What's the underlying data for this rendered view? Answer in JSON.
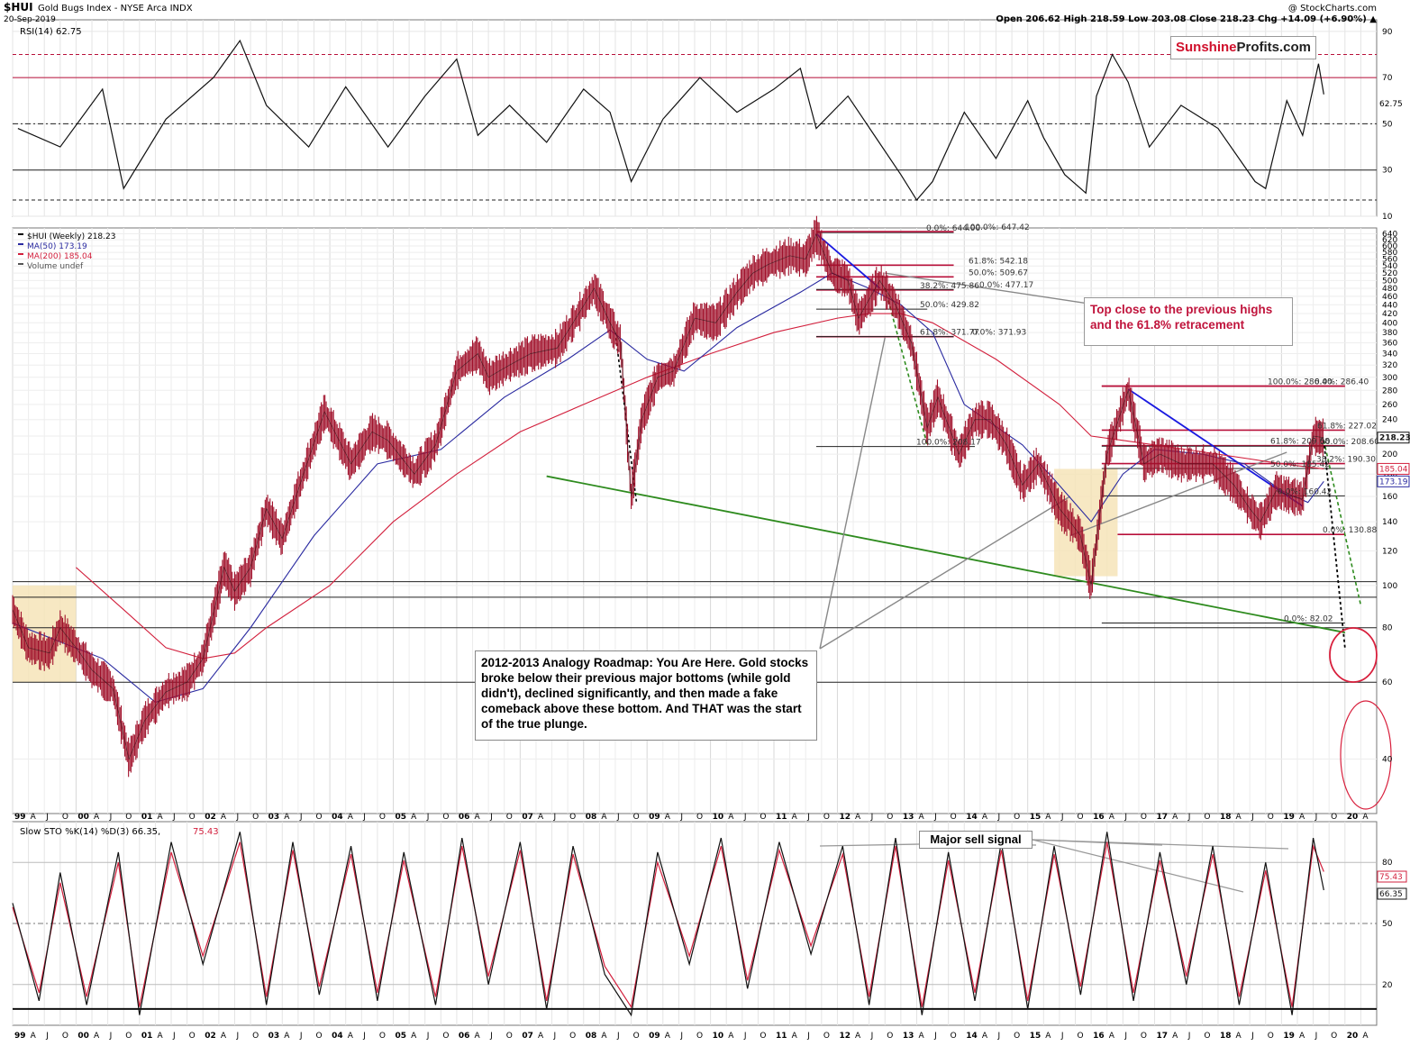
{
  "header": {
    "ticker": "$HUI",
    "name": "Gold Bugs Index - NYSE Arca INDX",
    "date": "20-Sep-2019",
    "credit": "@ StockCharts.com",
    "ohlc": "Open 206.62  High 218.59  Low 203.08  Close 218.23  Chg +14.09 (+6.90%) ▲"
  },
  "logo": {
    "part1": "Sunshine",
    "part2": "Profits.com"
  },
  "colors": {
    "price_bar": "#a0102a",
    "ma50": "#2a2aa0",
    "ma200": "#d21f3c",
    "resistance": "#b8103a",
    "trend_green": "#2e8b1e",
    "trend_blue": "#1a1ae0",
    "highlight_box": "#f5e2b4"
  },
  "chart_data": [
    {
      "type": "line",
      "title": "RSI(14) 62.75",
      "label": "RSI(14) 62.75",
      "ylim": [
        10,
        95
      ],
      "y_ticks": [
        90,
        70,
        50,
        30,
        10
      ],
      "last_value_label": "62.75",
      "reference_levels": [
        80,
        70,
        50,
        30,
        17
      ],
      "x": [
        "1999-02",
        "1999-10",
        "2000-06",
        "2000-10",
        "2001-06",
        "2002-03",
        "2002-08",
        "2003-01",
        "2003-09",
        "2004-04",
        "2004-12",
        "2005-07",
        "2006-01",
        "2006-05",
        "2006-11",
        "2007-06",
        "2008-01",
        "2008-06",
        "2008-10",
        "2009-04",
        "2009-11",
        "2010-06",
        "2011-01",
        "2011-06",
        "2011-09",
        "2012-03",
        "2012-08",
        "2013-01",
        "2013-04",
        "2013-07",
        "2014-01",
        "2014-07",
        "2015-01",
        "2015-04",
        "2015-08",
        "2015-12",
        "2016-02",
        "2016-05",
        "2016-08",
        "2016-12",
        "2017-06",
        "2018-01",
        "2018-08",
        "2018-10",
        "2019-02",
        "2019-05",
        "2019-08",
        "2019-09"
      ],
      "values": [
        48,
        40,
        65,
        22,
        52,
        70,
        86,
        58,
        40,
        66,
        40,
        62,
        78,
        45,
        58,
        42,
        65,
        55,
        25,
        52,
        70,
        55,
        65,
        74,
        48,
        62,
        45,
        28,
        17,
        25,
        55,
        35,
        60,
        44,
        28,
        20,
        62,
        80,
        68,
        40,
        58,
        48,
        25,
        22,
        60,
        45,
        76,
        62.75
      ]
    },
    {
      "type": "line",
      "title": "$HUI (Weekly) 218.23",
      "scale": "log",
      "ylim": [
        30,
        660
      ],
      "y_ticks": [
        640,
        620,
        600,
        580,
        560,
        540,
        520,
        500,
        480,
        460,
        440,
        420,
        400,
        380,
        360,
        340,
        320,
        300,
        280,
        260,
        240,
        220,
        200,
        180,
        160,
        140,
        120,
        100,
        80,
        60,
        40
      ],
      "x_labels": [
        "99",
        "A",
        "J",
        "O",
        "00",
        "A",
        "J",
        "O",
        "01",
        "A",
        "J",
        "O",
        "02",
        "A",
        "J",
        "O",
        "03",
        "A",
        "J",
        "O",
        "04",
        "A",
        "J",
        "O",
        "05",
        "A",
        "J",
        "O",
        "06",
        "A",
        "J",
        "O",
        "07",
        "A",
        "J",
        "O",
        "08",
        "A",
        "J",
        "O",
        "09",
        "A",
        "J",
        "O",
        "10",
        "A",
        "J",
        "O",
        "11",
        "A",
        "J",
        "O",
        "12",
        "A",
        "J",
        "O",
        "13",
        "A",
        "J",
        "O",
        "14",
        "A",
        "J",
        "O",
        "15",
        "A",
        "J",
        "O",
        "16",
        "A",
        "J",
        "O",
        "17",
        "A",
        "J",
        "O",
        "18",
        "A",
        "J",
        "O",
        "19",
        "A",
        "J",
        "O",
        "20",
        "A"
      ],
      "legend": [
        {
          "name": "$HUI (Weekly) 218.23"
        },
        {
          "name": "MA(50) 173.19"
        },
        {
          "name": "MA(200) 185.04"
        },
        {
          "name": "Volume undef"
        }
      ],
      "series": [
        {
          "name": "$HUI (Weekly)",
          "x": [
            "1999-01",
            "1999-04",
            "1999-08",
            "1999-10",
            "2000-01",
            "2000-04",
            "2000-08",
            "2000-11",
            "2001-02",
            "2001-06",
            "2001-10",
            "2002-01",
            "2002-05",
            "2002-07",
            "2002-10",
            "2003-01",
            "2003-04",
            "2003-08",
            "2003-12",
            "2004-05",
            "2004-09",
            "2004-12",
            "2005-05",
            "2005-09",
            "2006-01",
            "2006-05",
            "2006-07",
            "2006-11",
            "2007-03",
            "2007-08",
            "2007-11",
            "2008-03",
            "2008-06",
            "2008-08",
            "2008-10",
            "2008-12",
            "2009-03",
            "2009-06",
            "2009-10",
            "2010-02",
            "2010-06",
            "2010-09",
            "2010-12",
            "2011-04",
            "2011-07",
            "2011-09",
            "2011-12",
            "2012-03",
            "2012-05",
            "2012-09",
            "2012-12",
            "2013-03",
            "2013-06",
            "2013-08",
            "2013-12",
            "2014-03",
            "2014-06",
            "2014-09",
            "2014-12",
            "2015-03",
            "2015-07",
            "2015-09",
            "2015-11",
            "2016-01",
            "2016-04",
            "2016-08",
            "2016-11",
            "2017-02",
            "2017-06",
            "2017-09",
            "2017-12",
            "2018-04",
            "2018-07",
            "2018-09",
            "2018-12",
            "2019-03",
            "2019-05",
            "2019-07",
            "2019-09"
          ],
          "values": [
            88,
            72,
            70,
            80,
            72,
            64,
            58,
            40,
            49,
            57,
            60,
            68,
            110,
            97,
            110,
            150,
            128,
            180,
            250,
            190,
            225,
            215,
            180,
            210,
            310,
            340,
            300,
            320,
            340,
            350,
            400,
            480,
            400,
            360,
            160,
            240,
            300,
            310,
            410,
            400,
            470,
            520,
            545,
            570,
            560,
            638,
            520,
            500,
            410,
            500,
            440,
            360,
            230,
            270,
            200,
            240,
            240,
            210,
            170,
            190,
            150,
            140,
            130,
            100,
            200,
            280,
            190,
            200,
            190,
            190,
            190,
            170,
            150,
            140,
            165,
            160,
            158,
            220,
            218.23
          ]
        },
        {
          "name": "MA(50) 173.19",
          "x": [
            "1999-01",
            "2000-06",
            "2001-04",
            "2002-01",
            "2002-10",
            "2003-10",
            "2004-10",
            "2005-10",
            "2006-10",
            "2007-10",
            "2008-06",
            "2009-01",
            "2009-08",
            "2010-06",
            "2011-06",
            "2011-12",
            "2012-07",
            "2013-01",
            "2013-07",
            "2014-01",
            "2014-12",
            "2015-06",
            "2016-01",
            "2016-07",
            "2017-01",
            "2017-10",
            "2018-06",
            "2019-01",
            "2019-06",
            "2019-09"
          ],
          "values": [
            82,
            68,
            54,
            58,
            80,
            130,
            190,
            205,
            270,
            330,
            385,
            330,
            310,
            390,
            470,
            520,
            480,
            440,
            380,
            260,
            210,
            175,
            140,
            180,
            205,
            200,
            190,
            165,
            155,
            173.19
          ]
        },
        {
          "name": "MA(200) 185.04",
          "x": [
            "2000-01",
            "2000-10",
            "2001-06",
            "2002-01",
            "2002-07",
            "2003-01",
            "2004-01",
            "2005-01",
            "2006-01",
            "2007-01",
            "2008-01",
            "2009-01",
            "2010-01",
            "2011-01",
            "2012-01",
            "2012-07",
            "2013-01",
            "2013-07",
            "2014-07",
            "2015-07",
            "2016-01",
            "2016-07",
            "2017-07",
            "2018-07",
            "2019-01",
            "2019-09"
          ],
          "values": [
            110,
            88,
            72,
            68,
            70,
            80,
            100,
            140,
            180,
            225,
            260,
            300,
            340,
            380,
            410,
            420,
            420,
            400,
            330,
            260,
            220,
            215,
            205,
            195,
            190,
            185.04
          ]
        }
      ],
      "price_labels": [
        {
          "text": "218.23",
          "value": 218.23
        },
        {
          "text": "185.04",
          "value": 185.04
        },
        {
          "text": "173.19",
          "value": 173.19
        }
      ],
      "fib_labels": [
        {
          "text": "0.0%: 644.00",
          "value": 644
        },
        {
          "text": "100.0%: 647.42",
          "value": 647.42
        },
        {
          "text": "61.8%: 542.18",
          "value": 542.18
        },
        {
          "text": "50.0%: 509.67",
          "value": 509.67
        },
        {
          "text": "38.2%: 475.86",
          "value": 475.86
        },
        {
          "text": "0.0%: 477.17",
          "value": 477.17
        },
        {
          "text": "50.0%: 429.82",
          "value": 429.82
        },
        {
          "text": "61.8%: 371.77",
          "value": 371.77
        },
        {
          "text": "0.0%: 371.93",
          "value": 371.93
        },
        {
          "text": "100.0%: 208.17",
          "value": 208.17
        },
        {
          "text": "100.0%: 286.40",
          "value": 286.4
        },
        {
          "text": "0.0%: 286.40",
          "value": 286.4
        },
        {
          "text": "61.8%: 227.02",
          "value": 227.02
        },
        {
          "text": "61.8%: 209.08",
          "value": 209.08
        },
        {
          "text": "50.0%: 208.60",
          "value": 208.6
        },
        {
          "text": "38.2%: 190.30",
          "value": 190.3
        },
        {
          "text": "50.0%: 185.42",
          "value": 185.42
        },
        {
          "text": "0.0%: 160.42",
          "value": 160.42
        },
        {
          "text": "0.0%: 130.88",
          "value": 130.88
        },
        {
          "text": "0.0%: 82.02",
          "value": 82.02
        }
      ],
      "annotations": [
        {
          "id": "analogy",
          "text": "2012-2013 Analogy Roadmap: You Are Here. Gold stocks broke below their previous major bottoms (while gold didn't), declined significantly, and then made a fake comeback above these bottom. And THAT was the start of the true plunge."
        },
        {
          "id": "top",
          "text": "Top close to the previous highs and the 61.8% retracement"
        }
      ]
    },
    {
      "type": "line",
      "title": "Slow STO %K(14) %D(3) 66.35, 75.43",
      "label_k": "Slow STO %K(14) %D(3) 66.35, ",
      "label_d": "75.43",
      "ylim": [
        0,
        100
      ],
      "y_ticks": [
        80,
        50,
        20
      ],
      "last_value_labels": [
        "75.43",
        "66.35"
      ],
      "annotation": "Major sell signal",
      "x": [
        "1999-01",
        "1999-06",
        "1999-10",
        "2000-03",
        "2000-09",
        "2001-01",
        "2001-07",
        "2002-01",
        "2002-08",
        "2003-01",
        "2003-06",
        "2003-11",
        "2004-05",
        "2004-10",
        "2005-03",
        "2005-09",
        "2006-02",
        "2006-07",
        "2007-01",
        "2007-06",
        "2007-11",
        "2008-05",
        "2008-10",
        "2009-03",
        "2009-09",
        "2010-03",
        "2010-08",
        "2011-02",
        "2011-08",
        "2012-02",
        "2012-07",
        "2012-12",
        "2013-05",
        "2013-10",
        "2014-03",
        "2014-08",
        "2015-01",
        "2015-06",
        "2015-11",
        "2016-04",
        "2016-09",
        "2017-02",
        "2017-07",
        "2017-12",
        "2018-05",
        "2018-10",
        "2019-03",
        "2019-07",
        "2019-09"
      ],
      "values_k": [
        60,
        12,
        75,
        10,
        85,
        5,
        90,
        30,
        95,
        10,
        90,
        15,
        88,
        12,
        85,
        10,
        92,
        20,
        90,
        8,
        88,
        25,
        5,
        85,
        30,
        92,
        18,
        90,
        35,
        88,
        10,
        92,
        5,
        85,
        12,
        90,
        8,
        88,
        15,
        95,
        12,
        85,
        20,
        88,
        10,
        80,
        5,
        92,
        66.35
      ],
      "values_d": [
        58,
        16,
        70,
        14,
        80,
        9,
        85,
        34,
        90,
        14,
        86,
        19,
        84,
        16,
        81,
        14,
        88,
        24,
        86,
        12,
        84,
        29,
        9,
        80,
        34,
        88,
        22,
        86,
        39,
        84,
        14,
        88,
        9,
        81,
        16,
        86,
        12,
        84,
        19,
        90,
        16,
        81,
        24,
        84,
        14,
        76,
        9,
        88,
        75.43
      ]
    }
  ]
}
